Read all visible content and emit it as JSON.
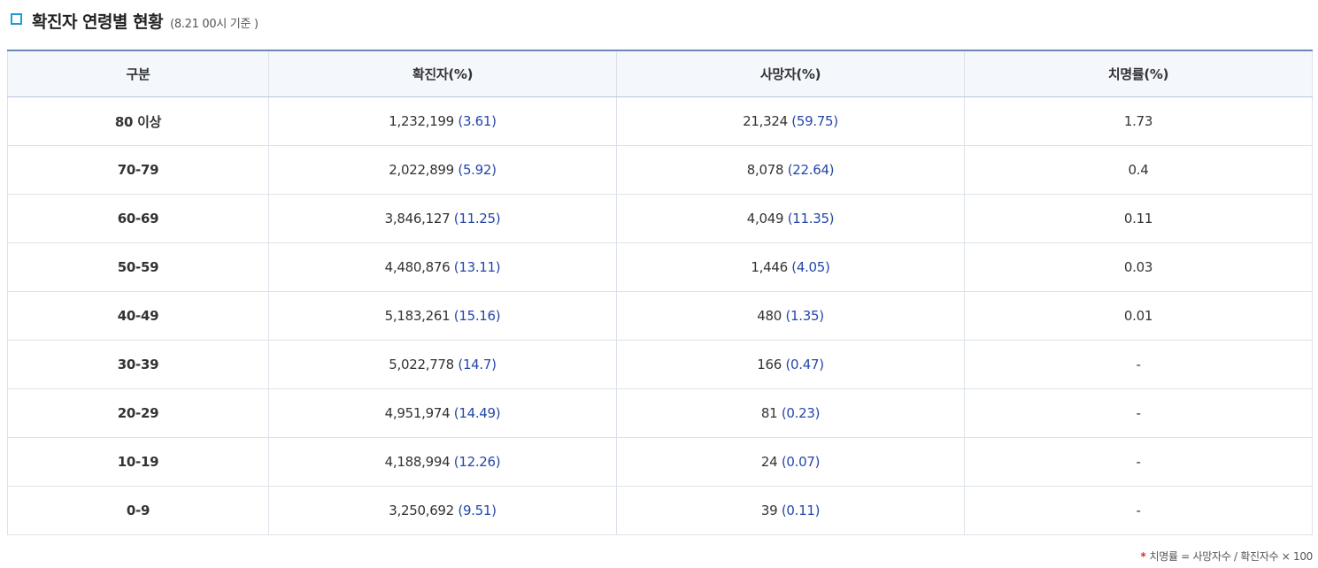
{
  "header": {
    "title": "확진자 연령별 현황",
    "subtitle": "(8.21 00시 기준 )"
  },
  "table": {
    "columns": [
      "구분",
      "확진자(%)",
      "사망자(%)",
      "치명률(%)"
    ],
    "rows": [
      {
        "age": "80 이상",
        "cases": "1,232,199",
        "cases_pct": "(3.61)",
        "deaths": "21,324",
        "deaths_pct": "(59.75)",
        "cfr": "1.73"
      },
      {
        "age": "70-79",
        "cases": "2,022,899",
        "cases_pct": "(5.92)",
        "deaths": "8,078",
        "deaths_pct": "(22.64)",
        "cfr": "0.4"
      },
      {
        "age": "60-69",
        "cases": "3,846,127",
        "cases_pct": "(11.25)",
        "deaths": "4,049",
        "deaths_pct": "(11.35)",
        "cfr": "0.11"
      },
      {
        "age": "50-59",
        "cases": "4,480,876",
        "cases_pct": "(13.11)",
        "deaths": "1,446",
        "deaths_pct": "(4.05)",
        "cfr": "0.03"
      },
      {
        "age": "40-49",
        "cases": "5,183,261",
        "cases_pct": "(15.16)",
        "deaths": "480",
        "deaths_pct": "(1.35)",
        "cfr": "0.01"
      },
      {
        "age": "30-39",
        "cases": "5,022,778",
        "cases_pct": "(14.7)",
        "deaths": "166",
        "deaths_pct": "(0.47)",
        "cfr": "-"
      },
      {
        "age": "20-29",
        "cases": "4,951,974",
        "cases_pct": "(14.49)",
        "deaths": "81",
        "deaths_pct": "(0.23)",
        "cfr": "-"
      },
      {
        "age": "10-19",
        "cases": "4,188,994",
        "cases_pct": "(12.26)",
        "deaths": "24",
        "deaths_pct": "(0.07)",
        "cfr": "-"
      },
      {
        "age": "0-9",
        "cases": "3,250,692",
        "cases_pct": "(9.51)",
        "deaths": "39",
        "deaths_pct": "(0.11)",
        "cfr": "-"
      }
    ]
  },
  "footnote": {
    "marker": "*",
    "text": "치명률 = 사망자수 / 확진자수 × 100"
  },
  "colors": {
    "accent_icon": "#1f9bd7",
    "header_border": "#6b87ba",
    "value_blue": "#2447a8",
    "age_label": "#33456b",
    "footnote_marker": "#d32f2f"
  },
  "icons": {
    "title_marker": "square-outline-icon"
  }
}
